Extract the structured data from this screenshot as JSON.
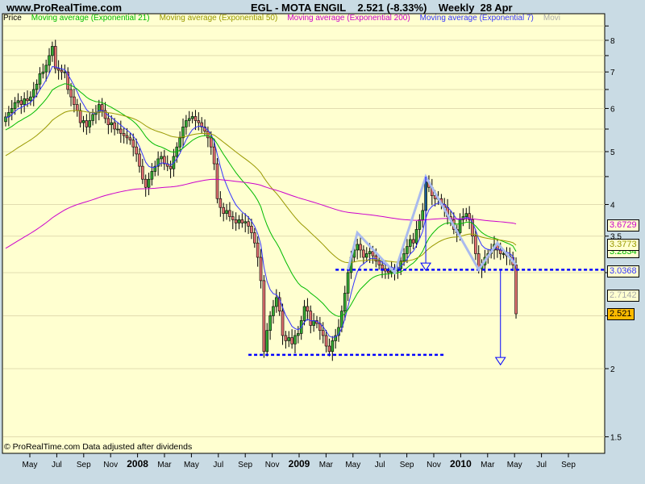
{
  "header": {
    "site": "www.ProRealTime.com",
    "title": "EGL - MOTA ENGIL    2.521 (-8.33%)    Weekly  28 Apr"
  },
  "legend": [
    {
      "label": "Price",
      "color": "#000000"
    },
    {
      "label": "Moving average (Exponential 21)",
      "color": "#00bb00"
    },
    {
      "label": "Moving average (Exponential 50)",
      "color": "#999900"
    },
    {
      "label": "Moving average (Exponential 200)",
      "color": "#cc00cc"
    },
    {
      "label": "Moving average (Exponential 7)",
      "color": "#3333ff"
    },
    {
      "label": "Movi",
      "color": "#aaaaaa"
    }
  ],
  "footer": "© ProRealTime.com  Data adjusted after dividends",
  "value_boxes": [
    {
      "label": "3.6729",
      "color": "#cc00cc",
      "bg": "#ffffd0"
    },
    {
      "label": "3.2834",
      "color": "#00bb00",
      "bg": "#ffffd0"
    },
    {
      "label": "3.3773",
      "color": "#999900",
      "bg": "#ffffd0"
    },
    {
      "label": "3.0368",
      "color": "#3333ff",
      "bg": "#ffffd0"
    },
    {
      "label": "2.7142",
      "color": "#aaaaaa",
      "bg": "#ffffd0"
    },
    {
      "label": "2.521",
      "color": "#000000",
      "bg": "#ffbb00"
    }
  ],
  "chart_data": {
    "type": "candlestick",
    "title": "EGL - MOTA ENGIL",
    "y_scale": "log",
    "ylim": [
      1.35,
      8.6
    ],
    "y_ticks": [
      8,
      7,
      6,
      5,
      4,
      3.5,
      2,
      1.5
    ],
    "grid": true,
    "colors": {
      "up": "#33aa33",
      "down": "#e07070",
      "background": "#ffffd0",
      "grid": "#e2dcb0"
    },
    "x_labels": [
      {
        "text": "May",
        "date": "2007-05"
      },
      {
        "text": "Jul",
        "date": "2007-07"
      },
      {
        "text": "Sep",
        "date": "2007-09"
      },
      {
        "text": "Nov",
        "date": "2007-11"
      },
      {
        "text": "2008",
        "date": "2008-01",
        "bold": true
      },
      {
        "text": "Mar",
        "date": "2008-03"
      },
      {
        "text": "May",
        "date": "2008-05"
      },
      {
        "text": "Jul",
        "date": "2008-07"
      },
      {
        "text": "Sep",
        "date": "2008-09"
      },
      {
        "text": "Nov",
        "date": "2008-11"
      },
      {
        "text": "2009",
        "date": "2009-01",
        "bold": true
      },
      {
        "text": "Mar",
        "date": "2009-03"
      },
      {
        "text": "May",
        "date": "2009-05"
      },
      {
        "text": "Jul",
        "date": "2009-07"
      },
      {
        "text": "Sep",
        "date": "2009-09"
      },
      {
        "text": "Nov",
        "date": "2009-11"
      },
      {
        "text": "2010",
        "date": "2010-01",
        "bold": true
      },
      {
        "text": "Mar",
        "date": "2010-03"
      },
      {
        "text": "May",
        "date": "2010-05"
      },
      {
        "text": "Jul",
        "date": "2010-07"
      },
      {
        "text": "Sep",
        "date": "2010-09"
      }
    ],
    "last_date": "2010-04-28",
    "weekly_close": [
      5.79,
      5.9,
      6.0,
      6.15,
      6.2,
      6.1,
      6.25,
      6.2,
      6.3,
      6.5,
      6.65,
      6.95,
      7.0,
      7.2,
      7.5,
      7.8,
      7.1,
      7.05,
      7.0,
      7.0,
      6.5,
      6.3,
      6.1,
      5.95,
      5.65,
      5.7,
      5.55,
      5.7,
      5.85,
      5.9,
      6.1,
      5.95,
      5.75,
      5.6,
      5.65,
      5.5,
      5.5,
      5.4,
      5.35,
      5.3,
      5.25,
      5.1,
      4.95,
      4.7,
      4.45,
      4.3,
      4.45,
      4.6,
      4.7,
      4.85,
      4.9,
      4.75,
      4.7,
      4.65,
      4.9,
      5.1,
      5.3,
      5.55,
      5.7,
      5.75,
      5.8,
      5.7,
      5.65,
      5.55,
      5.45,
      5.3,
      5.1,
      4.75,
      4.1,
      3.95,
      3.85,
      3.9,
      3.8,
      3.75,
      3.7,
      3.75,
      3.7,
      3.72,
      3.65,
      3.55,
      3.4,
      3.2,
      2.9,
      2.15,
      2.35,
      2.5,
      2.6,
      2.7,
      2.55,
      2.3,
      2.25,
      2.28,
      2.22,
      2.3,
      2.32,
      2.45,
      2.6,
      2.55,
      2.4,
      2.45,
      2.42,
      2.35,
      2.3,
      2.2,
      2.15,
      2.25,
      2.3,
      2.38,
      2.55,
      2.75,
      3.0,
      3.2,
      3.3,
      3.38,
      3.3,
      3.2,
      3.25,
      3.28,
      3.22,
      3.15,
      3.1,
      3.05,
      3.02,
      3.0,
      3.05,
      3.02,
      3.05,
      3.15,
      3.25,
      3.35,
      3.45,
      3.4,
      3.6,
      3.75,
      3.9,
      4.4,
      4.3,
      4.15,
      4.1,
      4.1,
      4.0,
      3.95,
      3.8,
      3.75,
      3.6,
      3.55,
      3.75,
      3.8,
      3.85,
      3.75,
      3.5,
      3.25,
      3.05,
      3.1,
      3.2,
      3.25,
      3.3,
      3.38,
      3.3,
      3.25,
      3.25,
      3.22,
      3.2,
      3.1,
      2.521
    ],
    "moving_averages": [
      {
        "name": "Moving average (Exponential 7)",
        "period": 7,
        "color": "#3333ff",
        "start": 5.75
      },
      {
        "name": "Moving average (Exponential 21)",
        "period": 21,
        "color": "#00bb00",
        "start": 5.45
      },
      {
        "name": "Moving average (Exponential 50)",
        "period": 50,
        "color": "#999900",
        "start": 4.88
      },
      {
        "name": "Moving average (Exponential 200)",
        "period": 200,
        "color": "#cc00cc",
        "start": 3.3
      }
    ],
    "annotations": {
      "support_lines": [
        {
          "price": 3.0368,
          "from_bar": 106,
          "color": "#0000ff"
        },
        {
          "price": 2.12,
          "from_bar": 78,
          "to_bar": 141,
          "color": "#0000ff"
        }
      ],
      "zigzag": [
        [
          110,
          3.04
        ],
        [
          113,
          3.55
        ],
        [
          125,
          3.0
        ],
        [
          135,
          4.5
        ],
        [
          152,
          3.04
        ],
        [
          158,
          3.4
        ],
        [
          164,
          3.1
        ]
      ],
      "target_arrows": [
        {
          "bar": 135,
          "from": 4.5,
          "to": 3.04
        },
        {
          "bar": 159,
          "from": 3.04,
          "to": 2.04
        }
      ]
    }
  }
}
